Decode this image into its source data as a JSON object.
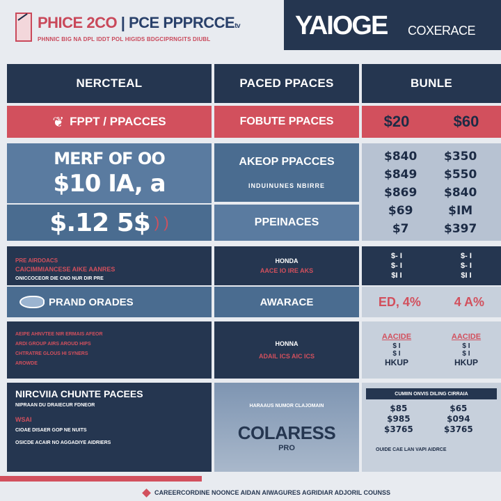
{
  "header": {
    "title_main": "PHICE 2CO",
    "title_tail": "| PCE PPPRCCE",
    "title_small": "tv",
    "subtitle": "PHNNIC BIG NA DPL IDDT POL HIGIDS BDGCIPRNGITS DIUBL",
    "brand": "YAIOGE",
    "brand_sub": "COXERACE"
  },
  "columns": {
    "col1": "NERCTEAL",
    "col2": "PACED PPACES",
    "col3": "BUNLE"
  },
  "row1": {
    "left_label": "FPPT / PPACCES",
    "mid_label": "FOBUTE PPACES",
    "price_a": "$20",
    "price_b": "$60"
  },
  "row2": {
    "left_line1": "MERF OF OO",
    "left_line2": "$10 IA, a",
    "left_line3": "$.12 5$",
    "mid_title": "AKEOP PPACCES",
    "mid_sub": "INDUINUNES NBIRRE",
    "mid_lower": "PPEINACES",
    "prices_a": [
      "$840",
      "$849",
      "$869",
      "$69",
      "$7"
    ],
    "prices_b": [
      "$350",
      "$550",
      "$840",
      "$IM",
      "$397"
    ]
  },
  "row3": {
    "left_heading": "PRE AIRDOACS",
    "left_line1": "CAICIMMIANCESE AIKE AANRES",
    "left_line2": "ONICCOCEOR DIE CNO NUR DIR PRE",
    "left_badge": "PRAND ORADES",
    "mid_heading": "HONDA",
    "mid_line": "AACE IO IRE AKS",
    "mid_lower": "AWARACE",
    "pct_a": "ED, 4%",
    "pct_b": "4 A%"
  },
  "row4": {
    "left_line1": "AEIPE AHNVTEE NIR ERMAIS AFEOR",
    "left_line2": "ARDI GROUP AIRS AROUD HIPS",
    "left_line3": "CHTRATRE GLOUS HI SYNERS",
    "left_line4": "AROWDE",
    "mid_heading": "HONNA",
    "mid_line": "ADAIL ICS AIC ICS",
    "right_heading_a": "AACIDE",
    "right_heading_b": "AACIDE",
    "right_sub_a": "HKUP",
    "right_sub_b": "HKUP"
  },
  "row5": {
    "left_heading": "NIRCVIIA CHUNTE PACEES",
    "left_line1": "NIPRAAN DU DRAIECUR FDNEOR",
    "left_tag": "WSAI",
    "left_line2": "CIOAE DISAER GOP NE NUITS",
    "left_line3": "OSICDE ACAIR NO AGGADIYE AIDRIERS",
    "mid_top": "HARAAUS NUMOR CLAJOMAIN",
    "mid_big": "COLARESS",
    "mid_small": "PRO",
    "right_banner": "CUMIIN ONVIS DILING CIRRAIA",
    "prices_a": [
      "$85",
      "$985",
      "$3765"
    ],
    "prices_b": [
      "$65",
      "$094",
      "$3765"
    ],
    "right_footer": "OUIDE CAE LAN VAPI AIDRCE"
  },
  "footer": {
    "text": "CAREERCORDINE NOONCE AIDAN AIWAGURES AGRIDIAR ADJORIL COUNSS"
  }
}
